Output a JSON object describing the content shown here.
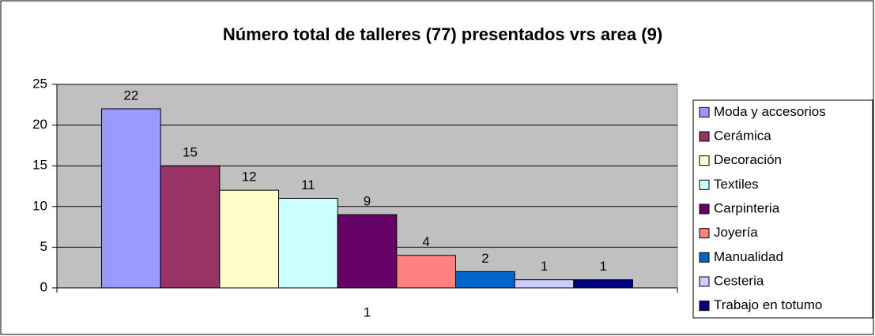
{
  "chart_data": {
    "type": "bar",
    "title": "Número total de talleres (77)  presentados  vrs area (9)",
    "categories": [
      "1"
    ],
    "series": [
      {
        "name": "Moda y accesorios",
        "color": "#9999ff",
        "values": [
          22
        ]
      },
      {
        "name": "Cerámica",
        "color": "#993366",
        "values": [
          15
        ]
      },
      {
        "name": "Decoración",
        "color": "#ffffcc",
        "values": [
          12
        ]
      },
      {
        "name": "Textiles",
        "color": "#ccffff",
        "values": [
          11
        ]
      },
      {
        "name": "Carpinteria",
        "color": "#660066",
        "values": [
          9
        ]
      },
      {
        "name": "Joyería",
        "color": "#ff8080",
        "values": [
          4
        ]
      },
      {
        "name": "Manualidad",
        "color": "#0066cc",
        "values": [
          2
        ]
      },
      {
        "name": "Cesteria",
        "color": "#ccccff",
        "values": [
          1
        ]
      },
      {
        "name": "Trabajo en totumo",
        "color": "#000080",
        "values": [
          1
        ]
      }
    ],
    "ylim": [
      0,
      25
    ],
    "yticks": [
      0,
      5,
      10,
      15,
      20,
      25
    ],
    "grid": true,
    "legend": "right"
  }
}
